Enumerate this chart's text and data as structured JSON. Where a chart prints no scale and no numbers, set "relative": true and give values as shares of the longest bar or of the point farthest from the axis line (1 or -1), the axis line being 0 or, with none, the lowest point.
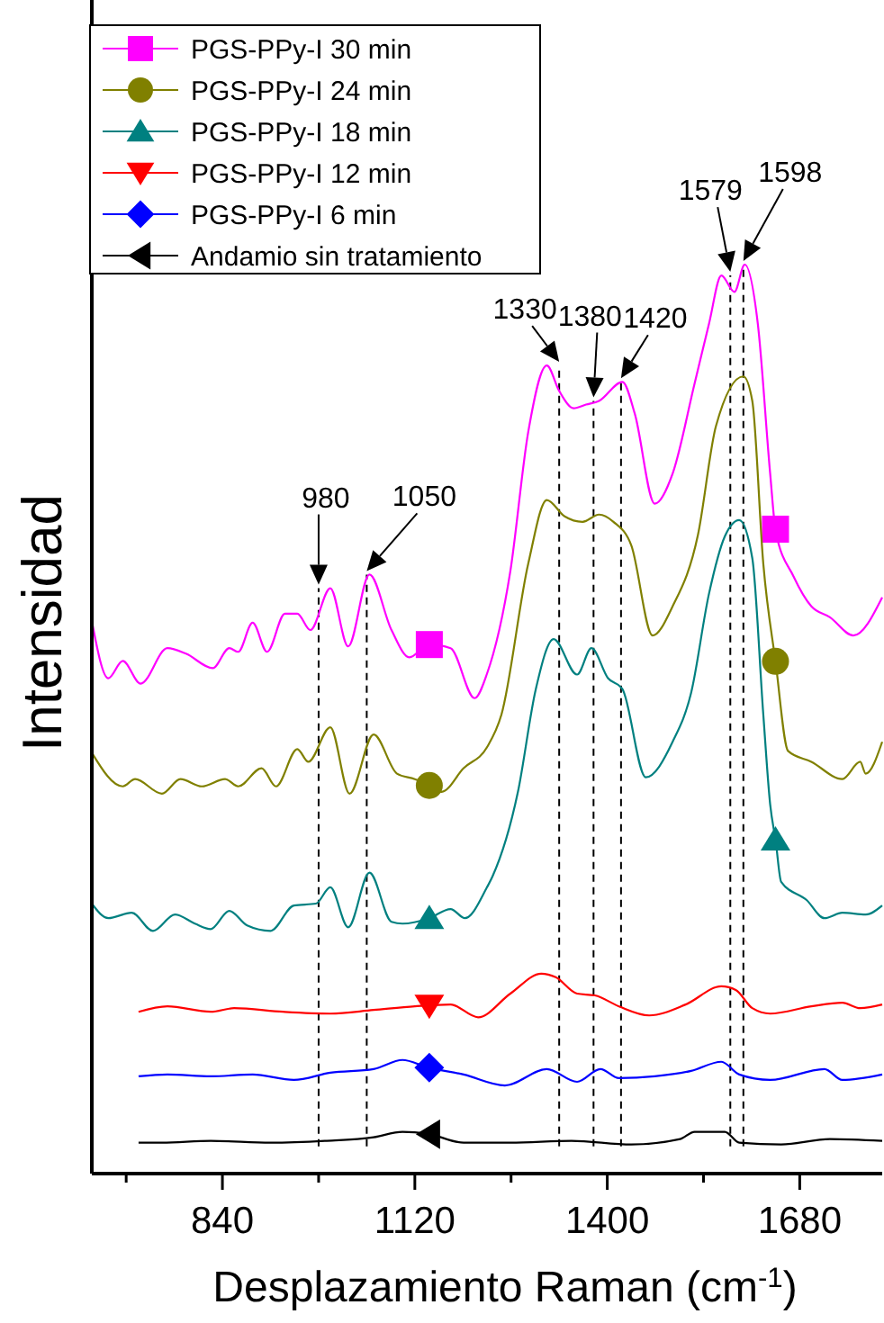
{
  "chart_data": {
    "type": "line",
    "relative": true,
    "xlabel": "Desplazamiento Raman (cm$^{-1}$)",
    "ylabel": "Intensidad",
    "xlim": [
      650,
      1800
    ],
    "xticks": [
      {
        "value": 700,
        "label": null
      },
      840,
      {
        "value": 980,
        "label": null
      },
      1120,
      {
        "value": 1260,
        "label": null
      },
      1400,
      {
        "value": 1540,
        "label": null
      },
      1680
    ],
    "legend": "top left",
    "grid": false,
    "line_style": "solid",
    "series": [
      {
        "name": "PGS-PPy-I 30 min",
        "color": "#ff00ff",
        "x": [
          650,
          674,
          695,
          721,
          760,
          787,
          826,
          850,
          863,
          884,
          905,
          931,
          949,
          968,
          997,
          1023,
          1054,
          1086,
          1112,
          1141,
          1172,
          1207,
          1225,
          1259,
          1285,
          1312,
          1330,
          1351,
          1369,
          1388,
          1422,
          1440,
          1469,
          1495,
          1527,
          1548,
          1566,
          1585,
          1600,
          1619,
          1637,
          1645,
          1671,
          1697,
          1724,
          1758,
          1800
        ],
        "values": [
          0.608,
          0.545,
          0.564,
          0.539,
          0.578,
          0.572,
          0.556,
          0.578,
          0.574,
          0.606,
          0.574,
          0.616,
          0.616,
          0.598,
          0.644,
          0.58,
          0.659,
          0.598,
          0.568,
          0.582,
          0.578,
          0.523,
          0.55,
          0.663,
          0.816,
          0.889,
          0.861,
          0.842,
          0.846,
          0.85,
          0.871,
          0.836,
          0.737,
          0.77,
          0.869,
          0.935,
          0.988,
          0.97,
          1,
          0.935,
          0.77,
          0.707,
          0.657,
          0.624,
          0.612,
          0.592,
          0.634
        ]
      },
      {
        "name": "PGS-PPy-I 24 min",
        "color": "#808000",
        "x": [
          650,
          695,
          713,
          752,
          779,
          810,
          844,
          863,
          897,
          918,
          949,
          965,
          997,
          1025,
          1060,
          1094,
          1120,
          1141,
          1159,
          1191,
          1225,
          1246,
          1285,
          1312,
          1338,
          1364,
          1388,
          1409,
          1435,
          1466,
          1495,
          1532,
          1558,
          1598,
          1611,
          1627,
          1645,
          1663,
          1697,
          1742,
          1768,
          1776,
          1800
        ],
        "values": [
          0.463,
          0.426,
          0.434,
          0.418,
          0.434,
          0.426,
          0.434,
          0.426,
          0.446,
          0.426,
          0.467,
          0.453,
          0.491,
          0.418,
          0.483,
          0.44,
          0.434,
          0.427,
          0.42,
          0.446,
          0.469,
          0.505,
          0.671,
          0.741,
          0.723,
          0.717,
          0.725,
          0.717,
          0.691,
          0.592,
          0.624,
          0.703,
          0.822,
          0.877,
          0.85,
          0.671,
          0.562,
          0.465,
          0.453,
          0.434,
          0.453,
          0.44,
          0.475
        ]
      },
      {
        "name": "PGS-PPy-I 18 min",
        "color": "#008080",
        "x": [
          650,
          674,
          708,
          739,
          771,
          800,
          823,
          850,
          876,
          910,
          944,
          976,
          997,
          1023,
          1054,
          1086,
          1102,
          1141,
          1172,
          1193,
          1225,
          1233,
          1270,
          1296,
          1322,
          1356,
          1377,
          1401,
          1422,
          1456,
          1495,
          1522,
          1548,
          1571,
          1592,
          1611,
          1627,
          1637,
          1645,
          1653,
          1690,
          1716,
          1742,
          1776,
          1800
        ],
        "values": [
          0.297,
          0.281,
          0.287,
          0.267,
          0.285,
          0.275,
          0.269,
          0.289,
          0.273,
          0.267,
          0.295,
          0.297,
          0.315,
          0.271,
          0.331,
          0.277,
          0.275,
          0.281,
          0.291,
          0.281,
          0.315,
          0.327,
          0.42,
          0.533,
          0.588,
          0.549,
          0.578,
          0.545,
          0.533,
          0.436,
          0.475,
          0.529,
          0.638,
          0.701,
          0.719,
          0.677,
          0.505,
          0.406,
          0.366,
          0.321,
          0.301,
          0.281,
          0.287,
          0.285,
          0.295
        ]
      },
      {
        "name": "PGS-PPy-I 12 min",
        "color": "#ff0000",
        "x": [
          718,
          760,
          823,
          857,
          928,
          997,
          1060,
          1120,
          1172,
          1212,
          1259,
          1304,
          1325,
          1356,
          1382,
          1417,
          1461,
          1514,
          1566,
          1587,
          1611,
          1637,
          1697,
          1742,
          1768,
          1800
        ],
        "values": [
          0.178,
          0.184,
          0.178,
          0.182,
          0.178,
          0.176,
          0.18,
          0.184,
          0.186,
          0.172,
          0.198,
          0.22,
          0.216,
          0.198,
          0.196,
          0.184,
          0.174,
          0.186,
          0.206,
          0.202,
          0.182,
          0.176,
          0.184,
          0.188,
          0.182,
          0.186
        ]
      },
      {
        "name": "PGS-PPy-I 6 min",
        "color": "#0000ff",
        "x": [
          718,
          760,
          823,
          884,
          944,
          997,
          1060,
          1102,
          1138,
          1191,
          1251,
          1312,
          1356,
          1390,
          1417,
          1469,
          1522,
          1566,
          1592,
          1637,
          1716,
          1742,
          1800
        ],
        "values": [
          0.107,
          0.109,
          0.107,
          0.109,
          0.103,
          0.111,
          0.115,
          0.125,
          0.117,
          0.109,
          0.097,
          0.115,
          0.101,
          0.115,
          0.105,
          0.107,
          0.113,
          0.123,
          0.109,
          0.103,
          0.115,
          0.103,
          0.109
        ]
      },
      {
        "name": "Andamio sin tratamiento",
        "color": "#000000",
        "x": [
          718,
          752,
          823,
          910,
          989,
          1060,
          1102,
          1138,
          1191,
          1259,
          1348,
          1435,
          1506,
          1527,
          1571,
          1592,
          1653,
          1724,
          1800
        ],
        "values": [
          0.034,
          0.034,
          0.036,
          0.034,
          0.036,
          0.04,
          0.046,
          0.044,
          0.034,
          0.034,
          0.036,
          0.032,
          0.038,
          0.046,
          0.046,
          0.034,
          0.032,
          0.038,
          0.036
        ]
      }
    ],
    "ref_lines": [
      {
        "axis": "x",
        "value": 980,
        "line_style": "dashed",
        "color": "#000000"
      },
      {
        "axis": "x",
        "value": 1050,
        "line_style": "dashed",
        "color": "#000000"
      },
      {
        "axis": "x",
        "value": 1330,
        "line_style": "dashed",
        "color": "#000000"
      },
      {
        "axis": "x",
        "value": 1380,
        "line_style": "dashed",
        "color": "#000000"
      },
      {
        "axis": "x",
        "value": 1420,
        "line_style": "dashed",
        "color": "#000000"
      },
      {
        "axis": "x",
        "value": 1579,
        "line_style": "dashed",
        "color": "#000000"
      },
      {
        "axis": "x",
        "value": 1598,
        "line_style": "dashed",
        "color": "#000000"
      }
    ],
    "annotations": [
      {
        "text": "980",
        "x": 980,
        "y": 0.644
      },
      {
        "text": "1050",
        "x": 1050,
        "y": 0.659
      },
      {
        "text": "1330",
        "x": 1330,
        "y": 0.889
      },
      {
        "text": "1380",
        "x": 1380,
        "y": 0.85
      },
      {
        "text": "1420",
        "x": 1420,
        "y": 0.871
      },
      {
        "text": "1579",
        "x": 1579,
        "y": 0.988
      },
      {
        "text": "1598",
        "x": 1598,
        "y": 1
      }
    ]
  }
}
